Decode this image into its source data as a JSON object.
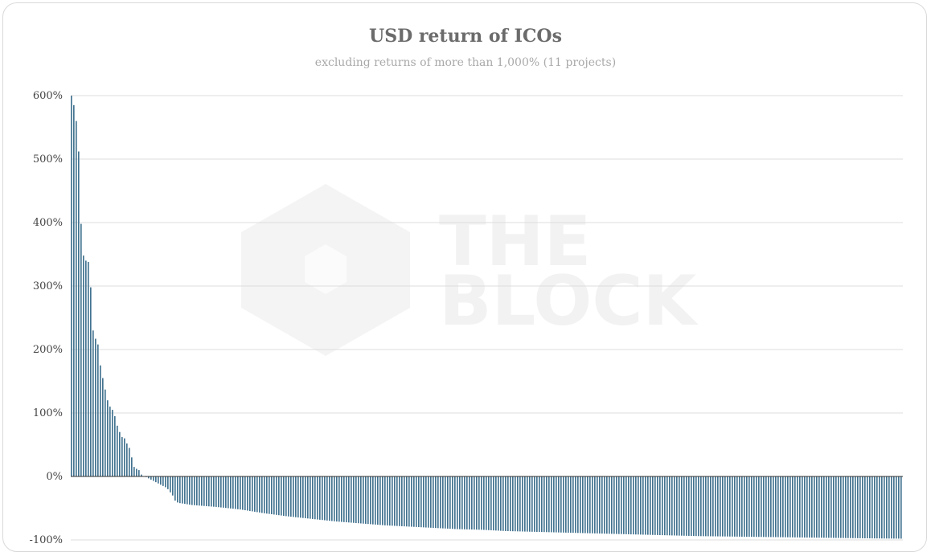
{
  "chart_data": {
    "type": "bar",
    "title": "USD return of ICOs",
    "subtitle": "excluding returns of more than 1,000% (11 projects)",
    "xlabel": "",
    "ylabel": "",
    "ylim": [
      -100,
      600
    ],
    "yticks": [
      {
        "value": 600,
        "label": "600%"
      },
      {
        "value": 500,
        "label": "500%"
      },
      {
        "value": 400,
        "label": "400%"
      },
      {
        "value": 300,
        "label": "300%"
      },
      {
        "value": 200,
        "label": "200%"
      },
      {
        "value": 100,
        "label": "100%"
      },
      {
        "value": 0,
        "label": "0%"
      },
      {
        "value": -100,
        "label": "-100%"
      }
    ],
    "grid": true,
    "bar_color": "#41728f",
    "sort": "descending",
    "bar_count": 345,
    "anchor_points": [
      [
        0,
        600
      ],
      [
        1,
        585
      ],
      [
        2,
        560
      ],
      [
        3,
        512
      ],
      [
        4,
        398
      ],
      [
        5,
        348
      ],
      [
        6,
        340
      ],
      [
        7,
        338
      ],
      [
        8,
        298
      ],
      [
        9,
        230
      ],
      [
        10,
        217
      ],
      [
        11,
        208
      ],
      [
        12,
        175
      ],
      [
        13,
        155
      ],
      [
        14,
        137
      ],
      [
        15,
        120
      ],
      [
        16,
        110
      ],
      [
        17,
        105
      ],
      [
        18,
        95
      ],
      [
        19,
        80
      ],
      [
        20,
        70
      ],
      [
        21,
        62
      ],
      [
        22,
        60
      ],
      [
        23,
        52
      ],
      [
        24,
        45
      ],
      [
        25,
        30
      ],
      [
        26,
        15
      ],
      [
        27,
        12
      ],
      [
        28,
        10
      ],
      [
        29,
        3
      ],
      [
        30,
        0
      ],
      [
        31,
        -1
      ],
      [
        32,
        -3
      ],
      [
        33,
        -5
      ],
      [
        34,
        -7
      ],
      [
        35,
        -9
      ],
      [
        36,
        -11
      ],
      [
        37,
        -13
      ],
      [
        38,
        -15
      ],
      [
        39,
        -17
      ],
      [
        40,
        -20
      ],
      [
        41,
        -25
      ],
      [
        42,
        -30
      ],
      [
        43,
        -38
      ],
      [
        44,
        -41
      ],
      [
        45,
        -42
      ],
      [
        50,
        -45
      ],
      [
        60,
        -48
      ],
      [
        70,
        -52
      ],
      [
        80,
        -58
      ],
      [
        90,
        -63
      ],
      [
        100,
        -67
      ],
      [
        110,
        -71
      ],
      [
        120,
        -74
      ],
      [
        130,
        -77
      ],
      [
        140,
        -79
      ],
      [
        150,
        -81
      ],
      [
        160,
        -83
      ],
      [
        170,
        -84
      ],
      [
        180,
        -86
      ],
      [
        190,
        -87
      ],
      [
        200,
        -88
      ],
      [
        210,
        -89
      ],
      [
        220,
        -90
      ],
      [
        230,
        -91
      ],
      [
        240,
        -92
      ],
      [
        250,
        -93
      ],
      [
        260,
        -94
      ],
      [
        270,
        -94.5
      ],
      [
        280,
        -95
      ],
      [
        290,
        -95.5
      ],
      [
        300,
        -96
      ],
      [
        310,
        -96.5
      ],
      [
        320,
        -97
      ],
      [
        330,
        -97.5
      ],
      [
        344,
        -98
      ]
    ]
  },
  "watermark": {
    "line1": "THE",
    "line2": "BLOCK"
  }
}
